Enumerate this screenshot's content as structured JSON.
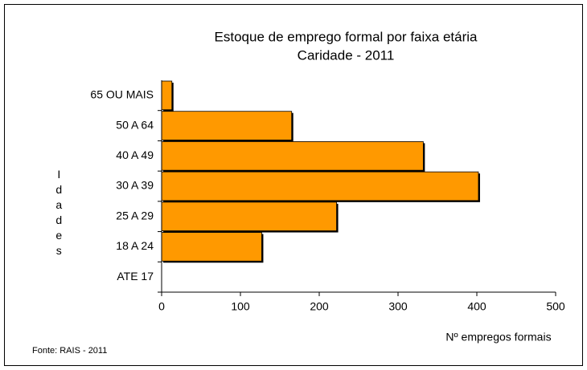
{
  "chart_data": {
    "type": "bar",
    "orientation": "horizontal",
    "title": "Estoque de emprego formal por faixa etária",
    "subtitle": "Caridade - 2011",
    "categories": [
      "ATE 17",
      "18 A 24",
      "25 A 29",
      "30 A 39",
      "40 A 49",
      "50 A 64",
      "65 OU MAIS"
    ],
    "values": [
      0,
      127,
      222,
      402,
      332,
      165,
      13
    ],
    "color": "#ff9900",
    "xlim": [
      0,
      500
    ],
    "xticks": [
      0,
      100,
      200,
      300,
      400,
      500
    ],
    "xlabel": "Nº empregos formais",
    "ylabel": "Idades",
    "source": "Fonte: RAIS - 2011",
    "grid": false
  }
}
